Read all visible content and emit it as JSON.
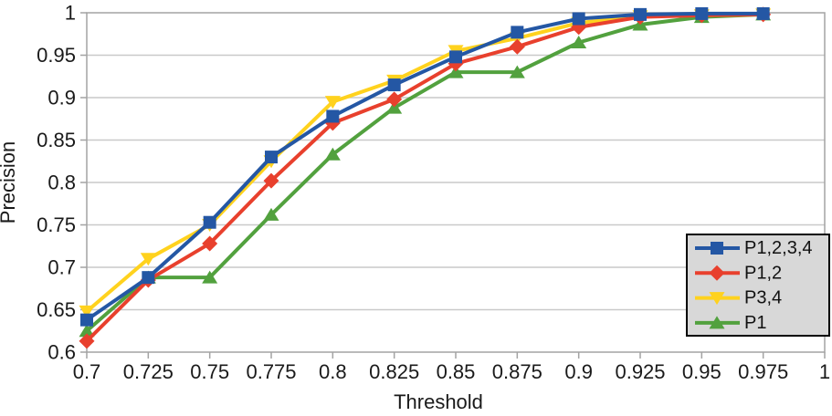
{
  "chart_data": {
    "type": "line",
    "title": "",
    "xlabel": "Threshold",
    "ylabel": "Precision",
    "xlim": [
      0.7,
      1.0
    ],
    "ylim": [
      0.6,
      1.0
    ],
    "x_tick_values": [
      0.7,
      0.725,
      0.75,
      0.775,
      0.8,
      0.825,
      0.85,
      0.875,
      0.9,
      0.925,
      0.95,
      0.975,
      1
    ],
    "x_tick_labels": [
      "0.7",
      "0.725",
      "0.75",
      "0.775",
      "0.8",
      "0.825",
      "0.85",
      "0.875",
      "0.9",
      "0.925",
      "0.95",
      "0.975",
      "1"
    ],
    "y_tick_values": [
      0.6,
      0.65,
      0.7,
      0.75,
      0.8,
      0.85,
      0.9,
      0.95,
      1
    ],
    "y_tick_labels": [
      "0.6",
      "0.65",
      "0.7",
      "0.75",
      "0.8",
      "0.85",
      "0.9",
      "0.95",
      "1"
    ],
    "grid": "horizontal-only",
    "legend_position": "inside-right",
    "x": [
      0.7,
      0.725,
      0.75,
      0.775,
      0.8,
      0.825,
      0.85,
      0.875,
      0.9,
      0.925,
      0.95,
      0.975
    ],
    "series": [
      {
        "name": "P1,2,3,4",
        "color": "#2457A4",
        "marker": "square",
        "values": [
          0.638,
          0.688,
          0.753,
          0.83,
          0.878,
          0.915,
          0.948,
          0.977,
          0.993,
          0.998,
          0.999,
          0.999
        ]
      },
      {
        "name": "P1,2",
        "color": "#E8402D",
        "marker": "diamond",
        "values": [
          0.613,
          0.685,
          0.728,
          0.802,
          0.87,
          0.898,
          0.94,
          0.96,
          0.983,
          0.995,
          0.997,
          0.998
        ]
      },
      {
        "name": "P3,4",
        "color": "#FFD21E",
        "marker": "triangle-down",
        "values": [
          0.648,
          0.71,
          0.75,
          0.825,
          0.895,
          0.92,
          0.955,
          0.97,
          0.988,
          0.996,
          0.997,
          0.998
        ]
      },
      {
        "name": "P1",
        "color": "#52A13E",
        "marker": "triangle-up",
        "values": [
          0.625,
          0.688,
          0.688,
          0.762,
          0.833,
          0.888,
          0.93,
          0.93,
          0.965,
          0.986,
          0.995,
          0.998
        ]
      }
    ],
    "colors": {
      "gridline": "#C9C9C9",
      "plot_border": "#A3A3A3",
      "legend_background": "#D8D8D8",
      "legend_border": "#000000",
      "text": "#1a1a1a"
    }
  }
}
